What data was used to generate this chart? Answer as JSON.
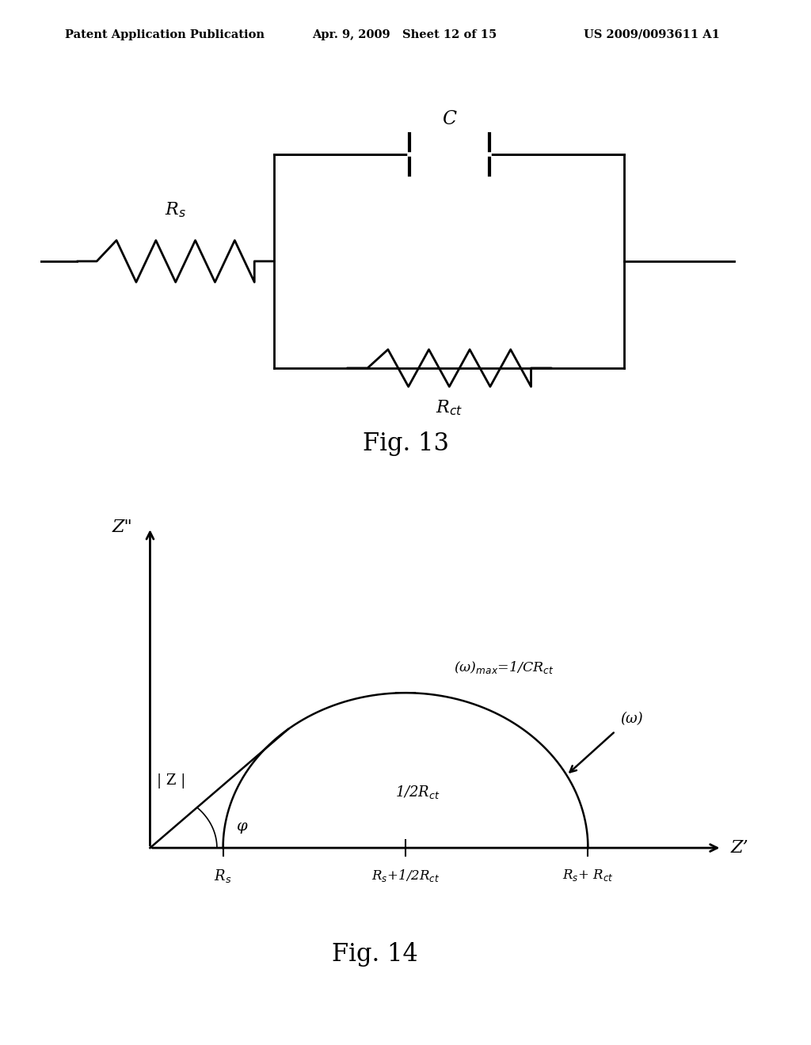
{
  "header_left": "Patent Application Publication",
  "header_center": "Apr. 9, 2009   Sheet 12 of 15",
  "header_right": "US 2009/0093611 A1",
  "fig13_label": "Fig. 13",
  "fig14_label": "Fig. 14",
  "circuit": {
    "Rs_label": "R$_s$",
    "C_label": "C",
    "Rct_label": "R$_{ct}$"
  },
  "nyquist": {
    "ylabel": "Z\"",
    "xlabel": "Z’",
    "omega_max_label": "(ω)$_{max}$=1/CR$_{ct}$",
    "IZI_label": "| Z |",
    "phi_label": "φ",
    "half_Rct_label": "1/2R$_{ct}$",
    "omega_label": "(ω)",
    "xaxis_Rs": "R$_s$",
    "xaxis_Rs_half": "R$_s$+1/2R$_{ct}$",
    "xaxis_Rs_Rct": "R$_s$+ R$_{ct}$"
  },
  "bg_color": "#ffffff",
  "line_color": "#000000"
}
